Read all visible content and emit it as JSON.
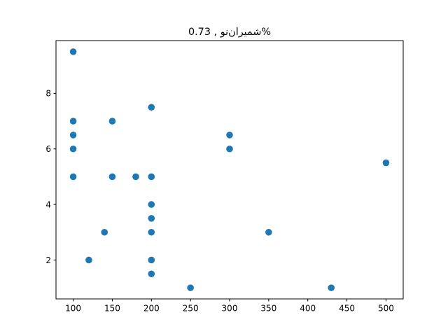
{
  "chart_data": {
    "type": "scatter",
    "title": "شمیران‌نو , 0.73%",
    "xlabel": "",
    "ylabel": "",
    "xlim": [
      78,
      522
    ],
    "ylim": [
      0.6,
      9.9
    ],
    "xticks": [
      100,
      150,
      200,
      250,
      300,
      350,
      400,
      450,
      500
    ],
    "yticks": [
      2,
      4,
      6,
      8
    ],
    "grid": false,
    "marker_color": "#1f77b4",
    "points": [
      {
        "x": 100,
        "y": 9.5
      },
      {
        "x": 100,
        "y": 7
      },
      {
        "x": 100,
        "y": 6.5
      },
      {
        "x": 100,
        "y": 6
      },
      {
        "x": 100,
        "y": 5
      },
      {
        "x": 120,
        "y": 2
      },
      {
        "x": 140,
        "y": 3
      },
      {
        "x": 150,
        "y": 7
      },
      {
        "x": 150,
        "y": 5
      },
      {
        "x": 180,
        "y": 5
      },
      {
        "x": 200,
        "y": 7.5
      },
      {
        "x": 200,
        "y": 5
      },
      {
        "x": 200,
        "y": 4
      },
      {
        "x": 200,
        "y": 3.5
      },
      {
        "x": 200,
        "y": 3
      },
      {
        "x": 200,
        "y": 2
      },
      {
        "x": 200,
        "y": 1.5
      },
      {
        "x": 250,
        "y": 1
      },
      {
        "x": 300,
        "y": 6.5
      },
      {
        "x": 300,
        "y": 6
      },
      {
        "x": 350,
        "y": 3
      },
      {
        "x": 430,
        "y": 1
      },
      {
        "x": 500,
        "y": 5.5
      }
    ]
  }
}
